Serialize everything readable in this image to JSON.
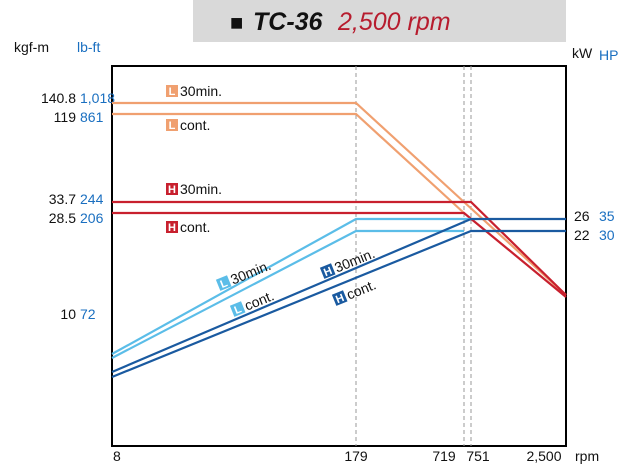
{
  "title": {
    "marker": "■",
    "model": "TC-36",
    "speed": "2,500 rpm",
    "speed_color": "#b71c2e"
  },
  "axes": {
    "left_unit_1": "kgf-m",
    "left_unit_2": "lb-ft",
    "right_unit_1": "kW",
    "right_unit_2": "HP",
    "x_unit": "rpm",
    "blue_text": "#1a6fc0"
  },
  "chart_data": {
    "type": "line",
    "title": "TC-36 2,500 rpm",
    "xlabel": "rpm",
    "x_ticks": [
      {
        "value": 8,
        "label": "8"
      },
      {
        "value": 179,
        "label": "179"
      },
      {
        "value": 719,
        "label": "719"
      },
      {
        "value": 751,
        "label": "751"
      },
      {
        "value": 2500,
        "label": "2,500"
      }
    ],
    "y_ticks_left": [
      {
        "kgfm": 140.8,
        "kgfm_label": "140.8",
        "lbft_label": "1,018"
      },
      {
        "kgfm": 119,
        "kgfm_label": "119",
        "lbft_label": "861"
      },
      {
        "kgfm": 33.7,
        "kgfm_label": "33.7",
        "lbft_label": "244"
      },
      {
        "kgfm": 28.5,
        "kgfm_label": "28.5",
        "lbft_label": "206"
      },
      {
        "kgfm": 10,
        "kgfm_label": "10",
        "lbft_label": "72"
      }
    ],
    "y_ticks_right": [
      {
        "kw": 26,
        "kw_label": "26",
        "hp_label": "35"
      },
      {
        "kw": 22,
        "kw_label": "22",
        "hp_label": "30"
      }
    ],
    "torque_series": [
      {
        "name": "L 30min.",
        "badge": "L",
        "text": "30min.",
        "color": "#f0a070",
        "badge_color": "#f0a070",
        "x": [
          8,
          179,
          719,
          2500
        ],
        "y": [
          140.8,
          140.8,
          33.7,
          9.7
        ]
      },
      {
        "name": "L cont.",
        "badge": "L",
        "text": "cont.",
        "color": "#f0a070",
        "badge_color": "#f0a070",
        "x": [
          8,
          179,
          719
        ],
        "y": [
          119,
          119,
          28.5
        ]
      },
      {
        "name": "H 30min.",
        "badge": "H",
        "text": "30min.",
        "color": "#c8202e",
        "badge_color": "#c8202e",
        "x": [
          8,
          751,
          2500
        ],
        "y": [
          33.7,
          33.7,
          9.7
        ]
      },
      {
        "name": "H cont.",
        "badge": "H",
        "text": "cont.",
        "color": "#c8202e",
        "badge_color": "#c8202e",
        "x": [
          8,
          719,
          2500
        ],
        "y": [
          28.5,
          28.5,
          8.3
        ]
      }
    ],
    "power_series": [
      {
        "name": "L 30min.",
        "badge": "L",
        "text": "30min.",
        "color": "#5bbde8",
        "badge_color": "#5bbde8",
        "x": [
          8,
          179,
          751
        ],
        "y": [
          26,
          26,
          26
        ]
      },
      {
        "name": "L cont.",
        "badge": "L",
        "text": "cont.",
        "color": "#5bbde8",
        "badge_color": "#5bbde8",
        "x": [
          8,
          179,
          719
        ],
        "y": [
          22,
          22,
          22
        ]
      },
      {
        "name": "H 30min.",
        "badge": "H",
        "text": "30min.",
        "color": "#1a5aa0",
        "badge_color": "#1a5aa0",
        "x": [
          8,
          751,
          2500
        ],
        "y": [
          26,
          26,
          26
        ]
      },
      {
        "name": "H cont.",
        "badge": "H",
        "text": "cont.",
        "color": "#1a5aa0",
        "badge_color": "#1a5aa0",
        "x": [
          8,
          751,
          2500
        ],
        "y": [
          22,
          22,
          22
        ]
      }
    ],
    "grid_vertical_at": [
      179,
      719,
      751
    ]
  }
}
